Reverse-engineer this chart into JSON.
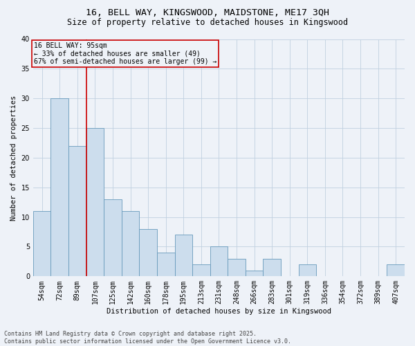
{
  "title_line1": "16, BELL WAY, KINGSWOOD, MAIDSTONE, ME17 3QH",
  "title_line2": "Size of property relative to detached houses in Kingswood",
  "xlabel": "Distribution of detached houses by size in Kingswood",
  "ylabel": "Number of detached properties",
  "categories": [
    "54sqm",
    "72sqm",
    "89sqm",
    "107sqm",
    "125sqm",
    "142sqm",
    "160sqm",
    "178sqm",
    "195sqm",
    "213sqm",
    "231sqm",
    "248sqm",
    "266sqm",
    "283sqm",
    "301sqm",
    "319sqm",
    "336sqm",
    "354sqm",
    "372sqm",
    "389sqm",
    "407sqm"
  ],
  "values": [
    11,
    30,
    22,
    25,
    13,
    11,
    8,
    4,
    7,
    2,
    5,
    3,
    1,
    3,
    0,
    2,
    0,
    0,
    0,
    0,
    2
  ],
  "bar_color": "#ccdded",
  "bar_edge_color": "#6699bb",
  "vline_x": 2.5,
  "vline_color": "#cc0000",
  "annotation_box_text": "16 BELL WAY: 95sqm\n← 33% of detached houses are smaller (49)\n67% of semi-detached houses are larger (99) →",
  "annotation_box_color": "#cc0000",
  "ylim": [
    0,
    40
  ],
  "yticks": [
    0,
    5,
    10,
    15,
    20,
    25,
    30,
    35,
    40
  ],
  "grid_color": "#c0d0e0",
  "bg_color": "#eef2f8",
  "footnote": "Contains HM Land Registry data © Crown copyright and database right 2025.\nContains public sector information licensed under the Open Government Licence v3.0.",
  "title_fontsize": 9.5,
  "subtitle_fontsize": 8.5,
  "axis_label_fontsize": 7.5,
  "tick_fontsize": 7,
  "annotation_fontsize": 7,
  "footnote_fontsize": 6
}
